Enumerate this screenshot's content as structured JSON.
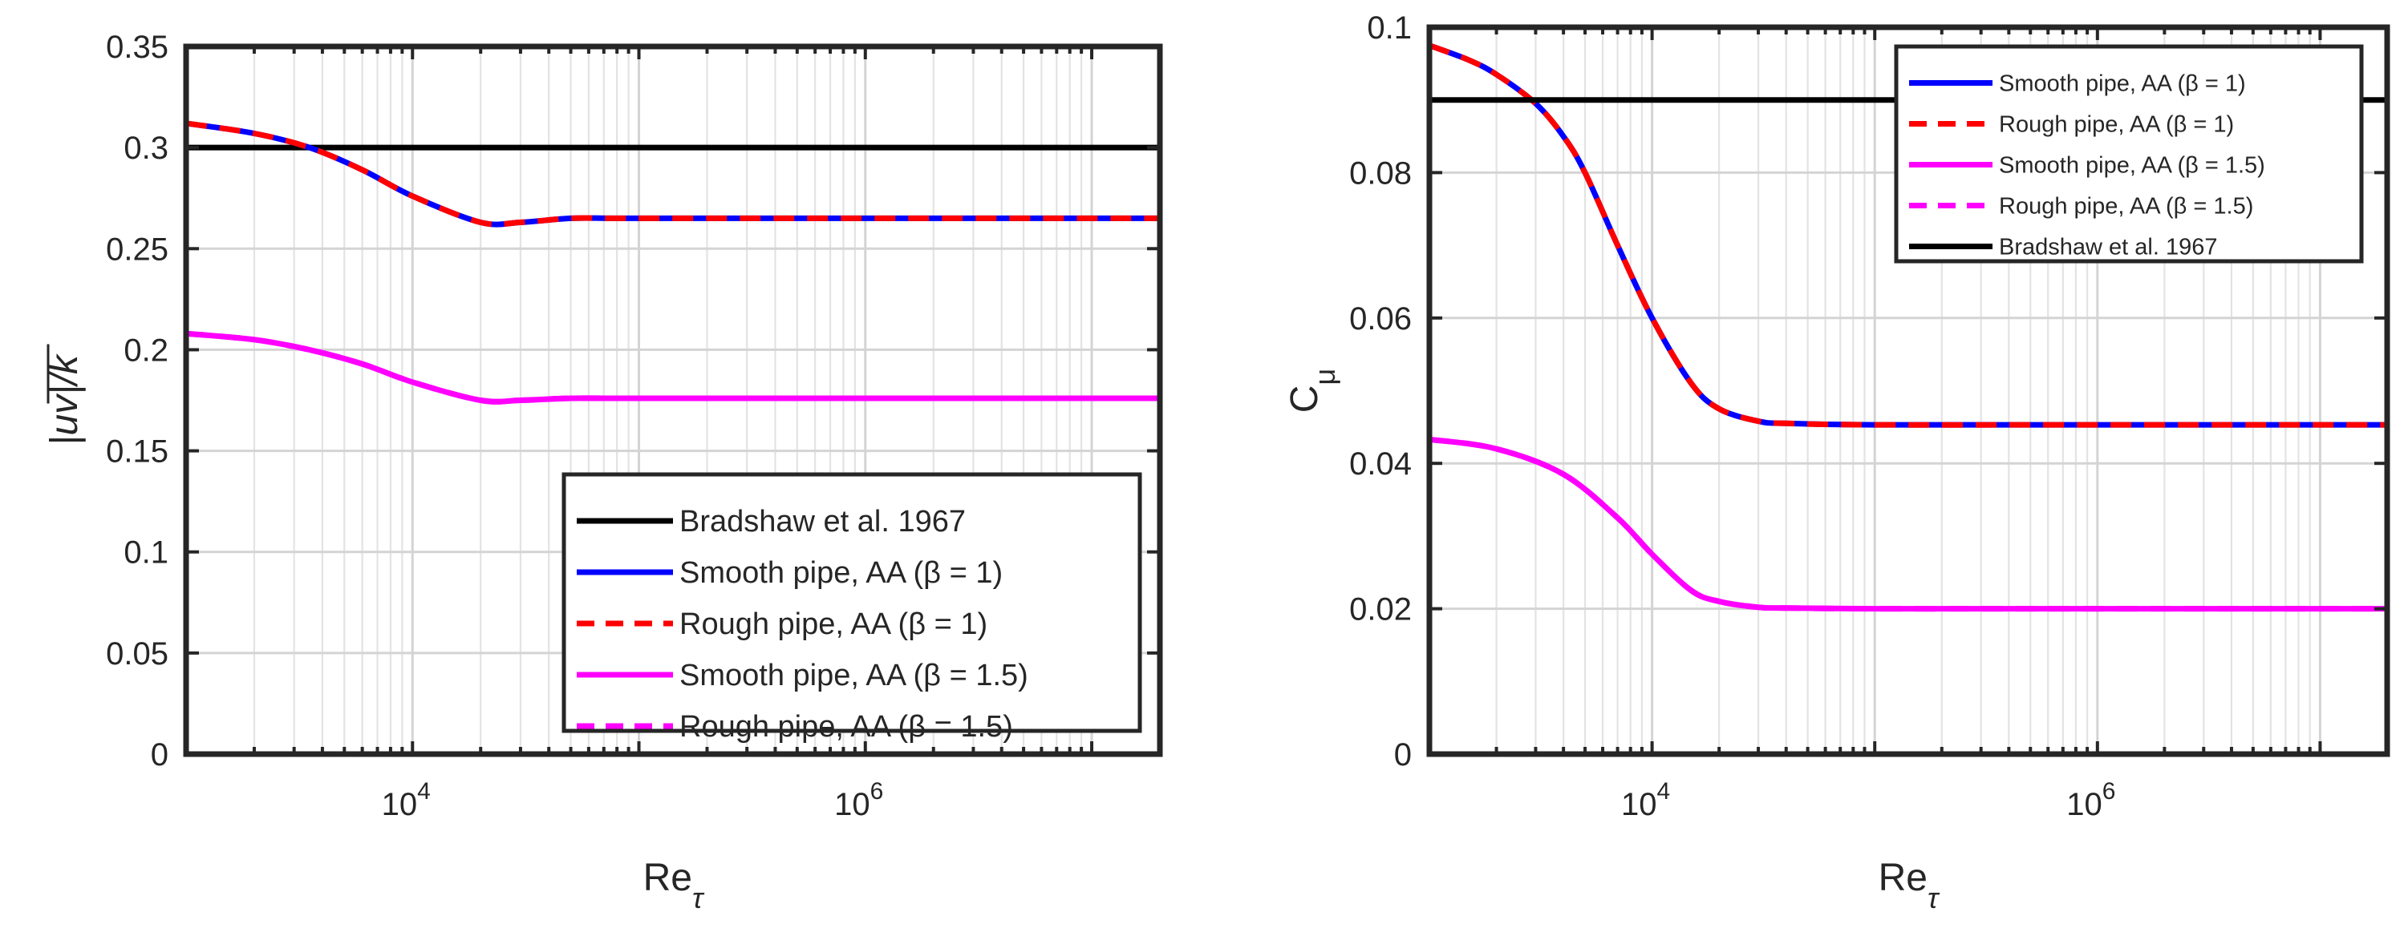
{
  "chart_data": [
    {
      "type": "line",
      "xscale": "log",
      "xlabel": "Re",
      "xlabel_sub": "τ",
      "ylabel": "|uv|/k",
      "xlim": [
        1000,
        20000000
      ],
      "ylim": [
        0,
        0.35
      ],
      "xticks": [
        {
          "value": 10000,
          "base": "10",
          "exp": "4"
        },
        {
          "value": 1000000,
          "base": "10",
          "exp": "6"
        }
      ],
      "yticks": [
        {
          "value": 0,
          "label": "0"
        },
        {
          "value": 0.05,
          "label": "0.05"
        },
        {
          "value": 0.1,
          "label": "0.1"
        },
        {
          "value": 0.15,
          "label": "0.15"
        },
        {
          "value": 0.2,
          "label": "0.2"
        },
        {
          "value": 0.25,
          "label": "0.25"
        },
        {
          "value": 0.3,
          "label": "0.3"
        },
        {
          "value": 0.35,
          "label": "0.35"
        }
      ],
      "grid": true,
      "legend_position": "bottom-right",
      "series": [
        {
          "name": "Bradshaw et al. 1967",
          "color": "#000000",
          "dash": "solid",
          "x": [
            1000,
            20000000
          ],
          "y": [
            0.3,
            0.3
          ]
        },
        {
          "name": "Smooth pipe, AA (β = 1)",
          "color": "#0000ff",
          "dash": "solid",
          "x": [
            1000,
            2000,
            3500,
            6000,
            10000,
            20000,
            30000,
            50000,
            80000,
            200000,
            1000000,
            20000000
          ],
          "y": [
            0.312,
            0.307,
            0.3,
            0.289,
            0.276,
            0.263,
            0.263,
            0.265,
            0.265,
            0.265,
            0.265,
            0.265
          ]
        },
        {
          "name": "Rough pipe, AA (β = 1)",
          "color": "#ff0000",
          "dash": "dashed",
          "x": [
            1000,
            2000,
            3500,
            6000,
            10000,
            20000,
            30000,
            50000,
            80000,
            200000,
            1000000,
            20000000
          ],
          "y": [
            0.312,
            0.307,
            0.3,
            0.289,
            0.276,
            0.263,
            0.263,
            0.265,
            0.265,
            0.265,
            0.265,
            0.265
          ]
        },
        {
          "name": "Smooth pipe, AA (β = 1.5)",
          "color": "#ff00ff",
          "dash": "solid",
          "x": [
            1000,
            2000,
            3500,
            6000,
            10000,
            20000,
            30000,
            50000,
            80000,
            200000,
            1000000,
            20000000
          ],
          "y": [
            0.208,
            0.205,
            0.2,
            0.193,
            0.184,
            0.175,
            0.175,
            0.176,
            0.176,
            0.176,
            0.176,
            0.176
          ]
        },
        {
          "name": "Rough pipe, AA (β = 1.5)",
          "color": "#ff00ff",
          "dash": "dashed",
          "x": [
            1000,
            2000,
            3500,
            6000,
            10000,
            20000,
            30000,
            50000,
            80000,
            200000,
            1000000,
            20000000
          ],
          "y": [
            0.208,
            0.205,
            0.2,
            0.193,
            0.184,
            0.175,
            0.175,
            0.176,
            0.176,
            0.176,
            0.176,
            0.176
          ]
        }
      ]
    },
    {
      "type": "line",
      "xscale": "log",
      "xlabel": "Re",
      "xlabel_sub": "τ",
      "ylabel": "C",
      "ylabel_sub": "μ",
      "xlim": [
        1000,
        20000000
      ],
      "ylim": [
        0,
        0.1
      ],
      "xticks": [
        {
          "value": 10000,
          "base": "10",
          "exp": "4"
        },
        {
          "value": 1000000,
          "base": "10",
          "exp": "6"
        }
      ],
      "yticks": [
        {
          "value": 0,
          "label": "0"
        },
        {
          "value": 0.02,
          "label": "0.02"
        },
        {
          "value": 0.04,
          "label": "0.04"
        },
        {
          "value": 0.06,
          "label": "0.06"
        },
        {
          "value": 0.08,
          "label": "0.08"
        },
        {
          "value": 0.1,
          "label": "0.1"
        }
      ],
      "grid": true,
      "legend_position": "top-right",
      "series": [
        {
          "name": "Smooth pipe, AA (β = 1)",
          "color": "#0000ff",
          "dash": "solid",
          "x": [
            1000,
            1500,
            2000,
            3000,
            4000,
            5000,
            7000,
            10000,
            15000,
            20000,
            30000,
            40000,
            100000,
            1000000,
            20000000
          ],
          "y": [
            0.0975,
            0.0955,
            0.0935,
            0.0895,
            0.085,
            0.08,
            0.07,
            0.06,
            0.051,
            0.0475,
            0.0458,
            0.0455,
            0.0453,
            0.0453,
            0.0453
          ]
        },
        {
          "name": "Rough pipe, AA (β = 1)",
          "color": "#ff0000",
          "dash": "dashed",
          "x": [
            1000,
            1500,
            2000,
            3000,
            4000,
            5000,
            7000,
            10000,
            15000,
            20000,
            30000,
            40000,
            100000,
            1000000,
            20000000
          ],
          "y": [
            0.0975,
            0.0955,
            0.0935,
            0.0895,
            0.085,
            0.08,
            0.07,
            0.06,
            0.051,
            0.0475,
            0.0458,
            0.0455,
            0.0453,
            0.0453,
            0.0453
          ]
        },
        {
          "name": "Smooth pipe, AA (β = 1.5)",
          "color": "#ff00ff",
          "dash": "solid",
          "x": [
            1000,
            2000,
            4000,
            7000,
            10000,
            15000,
            20000,
            30000,
            40000,
            100000,
            1000000,
            20000000
          ],
          "y": [
            0.0433,
            0.042,
            0.0385,
            0.0325,
            0.0275,
            0.0225,
            0.021,
            0.0202,
            0.0201,
            0.02,
            0.02,
            0.02
          ]
        },
        {
          "name": "Rough pipe, AA (β = 1.5)",
          "color": "#ff00ff",
          "dash": "dashed",
          "x": [
            1000,
            2000,
            4000,
            7000,
            10000,
            15000,
            20000,
            30000,
            40000,
            100000,
            1000000,
            20000000
          ],
          "y": [
            0.0433,
            0.042,
            0.0385,
            0.0325,
            0.0275,
            0.0225,
            0.021,
            0.0202,
            0.0201,
            0.02,
            0.02,
            0.02
          ]
        },
        {
          "name": "Bradshaw et al. 1967",
          "color": "#000000",
          "dash": "solid",
          "x": [
            1000,
            20000000
          ],
          "y": [
            0.09,
            0.09
          ]
        }
      ]
    }
  ]
}
